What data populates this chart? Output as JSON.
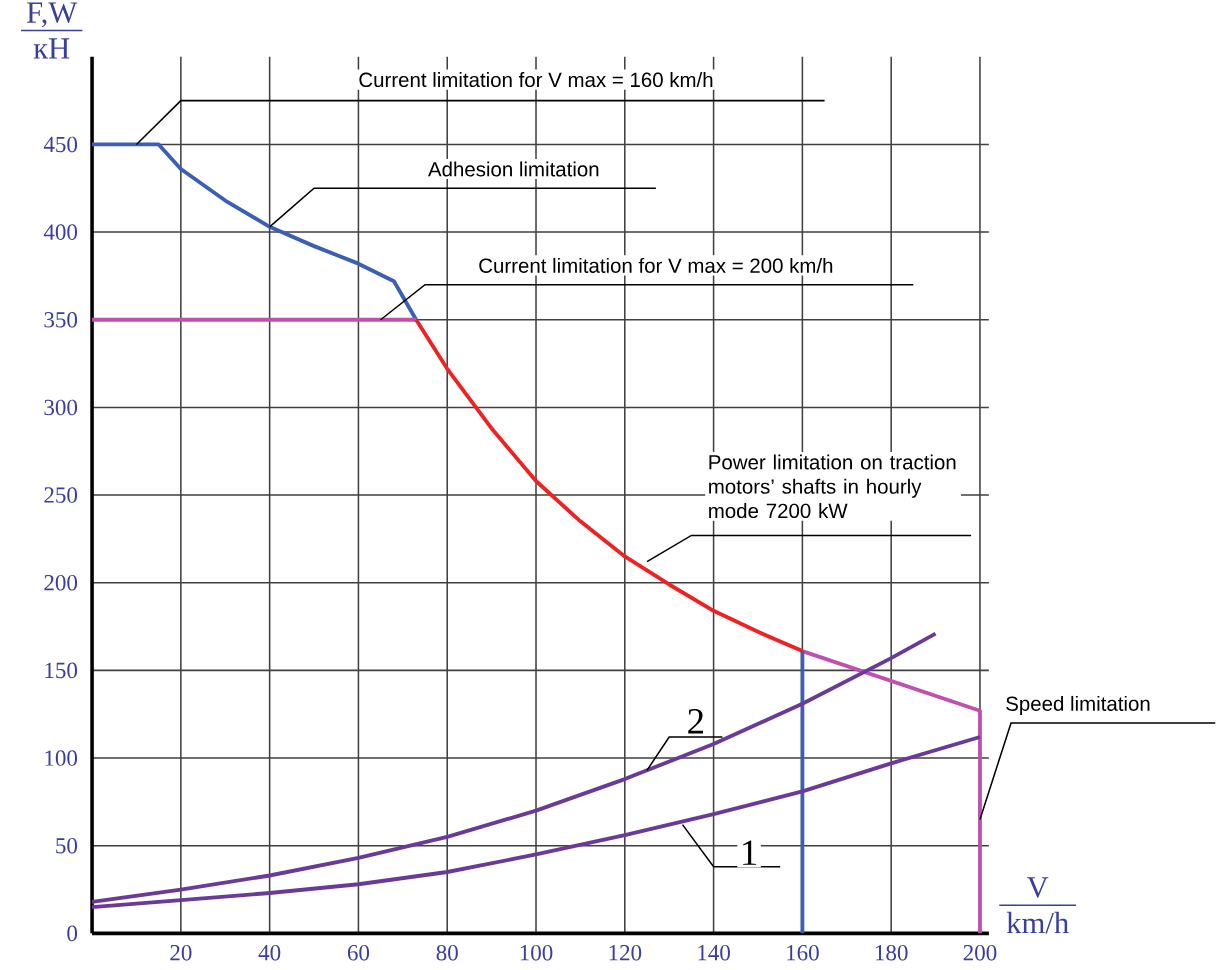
{
  "chart_data": {
    "type": "line",
    "xlabel": "V km/h",
    "ylabel": "F,W кН",
    "xlim": [
      0,
      202
    ],
    "ylim": [
      0,
      500
    ],
    "xticks": [
      20,
      40,
      60,
      80,
      100,
      120,
      140,
      160,
      180,
      200
    ],
    "yticks": [
      0,
      50,
      100,
      150,
      200,
      250,
      300,
      350,
      400,
      450
    ],
    "grid": true,
    "marker": "none",
    "line_style": "solid",
    "series": [
      {
        "color": "#3a5fb5",
        "x": [
          0,
          15,
          20,
          30,
          40,
          50,
          60,
          68,
          73
        ],
        "values": [
          450,
          450,
          436,
          418,
          403,
          392,
          382,
          372,
          350
        ]
      },
      {
        "color": "#c050b0",
        "x": [
          0,
          73
        ],
        "values": [
          350,
          350
        ]
      },
      {
        "color": "#ee2222",
        "x": [
          73,
          80,
          90,
          100,
          110,
          120,
          130,
          140,
          150,
          160
        ],
        "values": [
          350,
          322,
          288,
          258,
          235,
          215,
          199,
          184,
          172,
          161
        ]
      },
      {
        "color": "#c050b0",
        "x": [
          160,
          200,
          200
        ],
        "values": [
          161,
          127,
          0
        ]
      },
      {
        "color": "#3a5fb5",
        "x": [
          160,
          160
        ],
        "values": [
          161,
          0
        ]
      },
      {
        "color": "#6a3a9a",
        "x": [
          0,
          20,
          40,
          60,
          80,
          100,
          120,
          140,
          160,
          180,
          190
        ],
        "values": [
          18,
          25,
          33,
          43,
          55,
          70,
          88,
          108,
          131,
          157,
          171
        ]
      },
      {
        "color": "#6a3a9a",
        "x": [
          0,
          20,
          40,
          60,
          80,
          100,
          120,
          140,
          160,
          180,
          200
        ],
        "values": [
          15,
          19,
          23,
          28,
          35,
          45,
          56,
          68,
          81,
          97,
          112
        ]
      }
    ],
    "annotations": [
      {
        "text": "Current limitation for V max = 160 km/h",
        "x": 10,
        "y": 450
      },
      {
        "text": "Adhesion limitation",
        "x": 40,
        "y": 403
      },
      {
        "text": "Current limitation for V max = 200 km/h",
        "x": 65,
        "y": 350
      },
      {
        "text": "Power limitation on traction motors’ shafts in hourly mode 7200 kW",
        "x": 125,
        "y": 212
      },
      {
        "text": "Speed limitation",
        "x": 200,
        "y": 65
      },
      {
        "text": "2",
        "x": 125,
        "y": 93
      },
      {
        "text": "1",
        "x": 133,
        "y": 62
      }
    ]
  }
}
